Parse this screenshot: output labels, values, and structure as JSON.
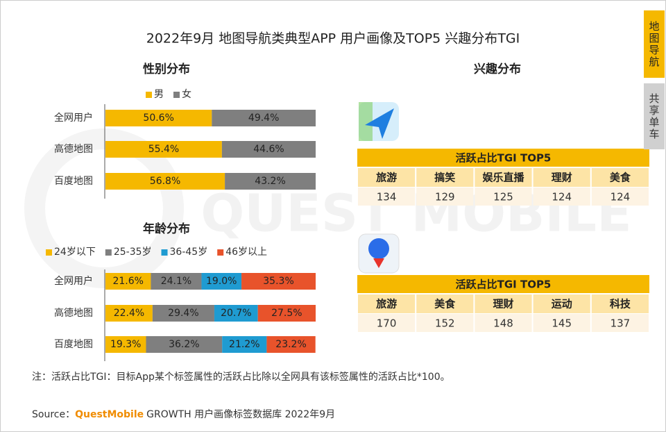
{
  "title": "2022年9月 地图导航类典型APP 用户画像及TOP5 兴趣分布TGI",
  "tabs": [
    "地图导航",
    "共享单车"
  ],
  "watermark": "QUEST MOBILE",
  "chart_data": [
    {
      "type": "stacked-bar-horizontal",
      "title": "性别分布",
      "categories": [
        "全网用户",
        "高德地图",
        "百度地图"
      ],
      "xlim": [
        0,
        100
      ],
      "legend": "top",
      "series": [
        {
          "name": "男",
          "color": "#f5b800",
          "values": [
            50.6,
            55.4,
            56.8
          ],
          "value_labels": [
            "50.6%",
            "55.4%",
            "56.8%"
          ]
        },
        {
          "name": "女",
          "color": "#7f7f7f",
          "values": [
            49.4,
            44.6,
            43.2
          ],
          "value_labels": [
            "49.4%",
            "44.6%",
            "43.2%"
          ]
        }
      ]
    },
    {
      "type": "stacked-bar-horizontal",
      "title": "年龄分布",
      "categories": [
        "全网用户",
        "高德地图",
        "百度地图"
      ],
      "xlim": [
        0,
        100
      ],
      "legend": "top",
      "series": [
        {
          "name": "24岁以下",
          "color": "#f5b800",
          "values": [
            21.6,
            22.4,
            19.3
          ],
          "value_labels": [
            "21.6%",
            "22.4%",
            "19.3%"
          ]
        },
        {
          "name": "25-35岁",
          "color": "#7f7f7f",
          "values": [
            24.1,
            29.4,
            36.2
          ],
          "value_labels": [
            "24.1%",
            "29.4%",
            "36.2%"
          ]
        },
        {
          "name": "36-45岁",
          "color": "#1f9bd1",
          "values": [
            19.0,
            20.7,
            21.2
          ],
          "value_labels": [
            "19.0%",
            "20.7%",
            "21.2%"
          ]
        },
        {
          "name": "46岁以上",
          "color": "#e8532b",
          "values": [
            35.3,
            27.5,
            23.2
          ],
          "value_labels": [
            "35.3%",
            "27.5%",
            "23.2%"
          ]
        }
      ]
    }
  ],
  "interest": {
    "title": "兴趣分布",
    "tables": [
      {
        "header": "活跃占比TGI TOP5",
        "columns": [
          "旅游",
          "搞笑",
          "娱乐直播",
          "理财",
          "美食"
        ],
        "values": [
          134,
          129,
          125,
          124,
          124
        ]
      },
      {
        "header": "活跃占比TGI TOP5",
        "columns": [
          "旅游",
          "美食",
          "理财",
          "运动",
          "科技"
        ],
        "values": [
          170,
          152,
          148,
          145,
          137
        ]
      }
    ]
  },
  "note": "注：活跃占比TGI：目标App某个标签属性的活跃占比除以全网具有该标签属性的活跃占比*100。",
  "source": {
    "label": "Source：",
    "brand": "QuestMobile",
    "text": "GROWTH 用户画像标签数据库 2022年9月"
  }
}
